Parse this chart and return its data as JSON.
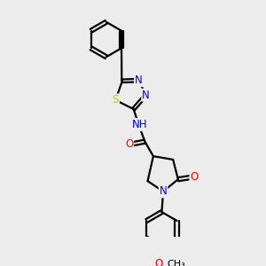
{
  "bg_color": "#ececec",
  "bond_color": "#000000",
  "bond_lw": 1.6,
  "atom_colors": {
    "N": "#0000ff",
    "S": "#cccc00",
    "O": "#ff0000",
    "H": "#008b8b",
    "C": "#000000"
  },
  "fs": 8.5
}
